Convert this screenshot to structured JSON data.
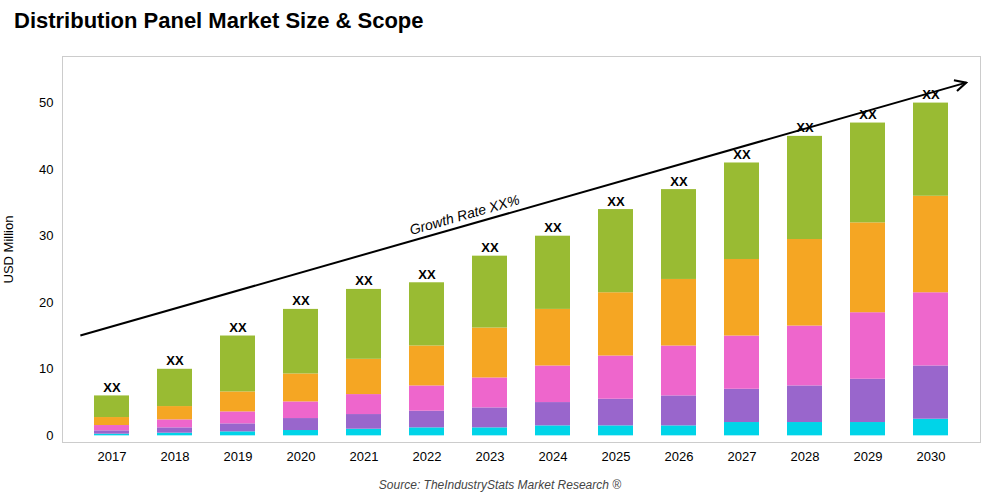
{
  "chart_data": {
    "type": "bar",
    "stacked": true,
    "title": "Distribution Panel Market Size & Scope",
    "ylabel": "USD Million",
    "source": "Source: TheIndustryStats Market Research ®",
    "categories": [
      2017,
      2018,
      2019,
      2020,
      2021,
      2022,
      2023,
      2024,
      2025,
      2026,
      2027,
      2028,
      2029,
      2030
    ],
    "series": [
      {
        "color": "#00d4e8",
        "values": [
          0.25,
          0.4,
          0.6,
          0.8,
          1.0,
          1.2,
          1.2,
          1.5,
          1.5,
          1.5,
          2.0,
          2.0,
          2.0,
          2.5
        ]
      },
      {
        "color": "#9966cc",
        "values": [
          0.5,
          0.8,
          1.2,
          1.8,
          2.2,
          2.5,
          3.0,
          3.5,
          4.0,
          4.5,
          5.0,
          5.5,
          6.5,
          8.0
        ]
      },
      {
        "color": "#ee66cc",
        "values": [
          0.8,
          1.2,
          1.8,
          2.5,
          3.0,
          3.8,
          4.5,
          5.5,
          6.5,
          7.5,
          8.0,
          9.0,
          10.0,
          11.0
        ]
      },
      {
        "color": "#f5a623",
        "values": [
          1.2,
          2.0,
          3.0,
          4.2,
          5.3,
          6.0,
          7.5,
          8.5,
          9.5,
          10.0,
          11.5,
          13.0,
          13.5,
          14.5
        ]
      },
      {
        "color": "#99bb33",
        "values": [
          3.25,
          5.6,
          8.4,
          9.7,
          10.5,
          9.5,
          10.8,
          11.0,
          12.5,
          13.5,
          14.5,
          15.5,
          15.0,
          14.0
        ]
      }
    ],
    "total_labels": [
      "XX",
      "XX",
      "XX",
      "XX",
      "XX",
      "XX",
      "XX",
      "XX",
      "XX",
      "XX",
      "XX",
      "XX",
      "XX",
      "XX"
    ],
    "annotations": [
      {
        "text": "Growth Rate XX%"
      }
    ],
    "ylim": [
      -1,
      57
    ],
    "yticks": [
      0,
      10,
      20,
      30,
      40,
      50
    ],
    "grid": false
  }
}
